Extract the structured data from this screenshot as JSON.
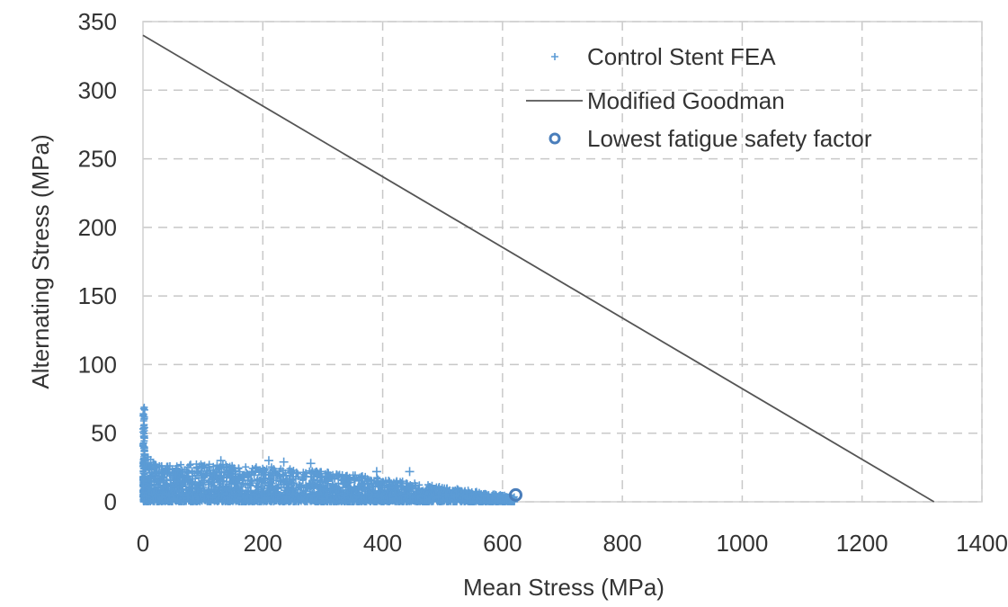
{
  "chart_data": {
    "type": "scatter",
    "title": "",
    "xlabel": "Mean Stress (MPa)",
    "ylabel": "Alternating Stress (MPa)",
    "xlim": [
      0,
      1400
    ],
    "ylim": [
      0,
      350
    ],
    "x_ticks": [
      0,
      200,
      400,
      600,
      800,
      1000,
      1200,
      1400
    ],
    "y_ticks": [
      0,
      50,
      100,
      150,
      200,
      250,
      300,
      350
    ],
    "x_tick_labels": [
      "0",
      "200",
      "400",
      "600",
      "800",
      "1000",
      "1200",
      "1400"
    ],
    "y_tick_labels": [
      "0",
      "50",
      "100",
      "150",
      "200",
      "250",
      "300",
      "350"
    ],
    "grid": true,
    "legend_position": "top-right",
    "series": [
      {
        "name": "Control Stent FEA",
        "kind": "scatter-plus",
        "color": "#5b9bd5",
        "envelope": {
          "x": [
            0,
            2,
            5,
            10,
            20,
            50,
            100,
            150,
            200,
            250,
            300,
            350,
            400,
            450,
            500,
            550,
            600,
            620
          ],
          "y_max": [
            70,
            45,
            38,
            32,
            28,
            27,
            28,
            27,
            26,
            24,
            22,
            20,
            17,
            14,
            11,
            8,
            5,
            4
          ]
        },
        "outliers": [
          {
            "x": 130,
            "y": 30
          },
          {
            "x": 210,
            "y": 30
          },
          {
            "x": 235,
            "y": 29
          },
          {
            "x": 280,
            "y": 28
          },
          {
            "x": 390,
            "y": 22
          },
          {
            "x": 445,
            "y": 22
          }
        ]
      },
      {
        "name": "Modified Goodman",
        "kind": "line",
        "color": "#555555",
        "x": [
          0,
          1320
        ],
        "y": [
          340,
          0
        ]
      },
      {
        "name": "Lowest fatigue safety factor",
        "kind": "scatter-circle",
        "color": "#4a7ebb",
        "x": [
          622
        ],
        "y": [
          5
        ]
      }
    ]
  }
}
